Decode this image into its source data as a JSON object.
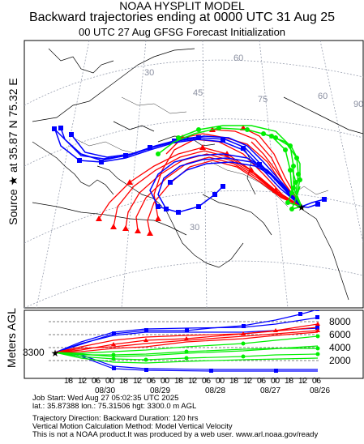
{
  "header": {
    "line1": "NOAA HYSPLIT MODEL",
    "line2": "Backward trajectories ending at 0000 UTC 31 Aug 25",
    "line3": "00 UTC 27 Aug    GFSG  Forecast Initialization"
  },
  "source_label": "Source ★ at 35.87 N   75.32 E",
  "vertical_label": "Meters AGL",
  "map_grid_labels": [
    "60",
    "30",
    "45",
    "75",
    "60",
    "90",
    "30"
  ],
  "height_axis": {
    "ticks": [
      "8000",
      "6000",
      "4000",
      "2000"
    ],
    "start_height": "3300"
  },
  "time_axis": {
    "hours": [
      "18",
      "12",
      "06",
      "00",
      "18",
      "12",
      "06",
      "00",
      "18",
      "12",
      "06",
      "00",
      "18",
      "12",
      "06",
      "00",
      "18",
      "12",
      "06",
      "00"
    ],
    "dates": [
      "08/30",
      "08/29",
      "08/28",
      "08/27",
      "08/26"
    ]
  },
  "footer": {
    "job_start": "Job Start: Wed Aug 27 05:02:35 UTC 2025",
    "location": "lat.: 35.87388   lon.: 75.31506    hgt: 3300.0 m AGL",
    "direction": "Trajectory Direction: Backward        Duration: 120 hrs",
    "method": "Vertical Motion Calculation Method: Model Vertical Velocity",
    "disclaimer": "This is not a NOAA product.It was produced by a web user. www.arl.noaa.gov/ready"
  },
  "colors": {
    "series_1": "#ff0000",
    "series_2": "#0000ff",
    "series_3": "#00ee00",
    "grid": "#9aa0b0",
    "coast": "#000000"
  }
}
